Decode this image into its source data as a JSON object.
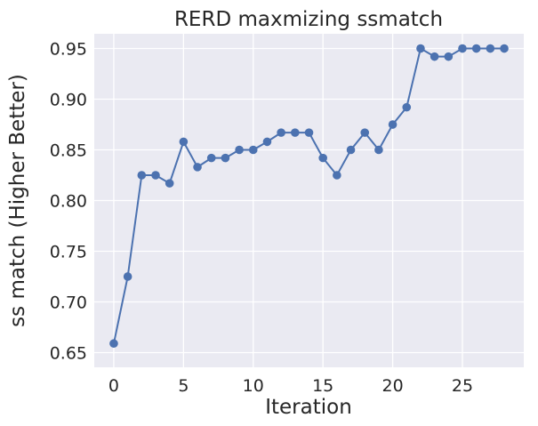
{
  "chart_data": {
    "type": "line",
    "title": "RERD maxmizing ssmatch",
    "xlabel": "Iteration",
    "ylabel": "ss match (Higher Better)",
    "xlim": [
      -1.4,
      29.4
    ],
    "ylim": [
      0.6355,
      0.9645
    ],
    "xticks": [
      0,
      5,
      10,
      15,
      20,
      25
    ],
    "yticks": [
      0.65,
      0.7,
      0.75,
      0.8,
      0.85,
      0.9,
      0.95
    ],
    "ytick_labels": [
      "0.65",
      "0.70",
      "0.75",
      "0.80",
      "0.85",
      "0.90",
      "0.95"
    ],
    "grid": true,
    "background": "#eaeaf2",
    "gridColor": "#ffffff",
    "series": [
      {
        "color": "#4c72b0",
        "marker": "circle",
        "x": [
          0,
          1,
          2,
          3,
          4,
          5,
          6,
          7,
          8,
          9,
          10,
          11,
          12,
          13,
          14,
          15,
          16,
          17,
          18,
          19,
          20,
          21,
          22,
          23,
          24,
          25,
          26,
          27,
          28
        ],
        "y": [
          0.659,
          0.725,
          0.825,
          0.825,
          0.817,
          0.858,
          0.833,
          0.842,
          0.842,
          0.85,
          0.85,
          0.858,
          0.867,
          0.867,
          0.867,
          0.842,
          0.825,
          0.85,
          0.867,
          0.85,
          0.875,
          0.892,
          0.95,
          0.942,
          0.942,
          0.95,
          0.95,
          0.95,
          0.95
        ]
      }
    ]
  }
}
